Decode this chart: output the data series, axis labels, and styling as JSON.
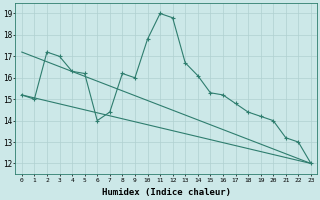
{
  "xlabel": "Humidex (Indice chaleur)",
  "bg_color": "#cce8e8",
  "grid_color": "#b0d0d0",
  "line_color": "#2e7d6e",
  "xlim": [
    -0.5,
    23.5
  ],
  "ylim": [
    11.5,
    19.5
  ],
  "xticks": [
    0,
    1,
    2,
    3,
    4,
    5,
    6,
    7,
    8,
    9,
    10,
    11,
    12,
    13,
    14,
    15,
    16,
    17,
    18,
    19,
    20,
    21,
    22,
    23
  ],
  "yticks": [
    12,
    13,
    14,
    15,
    16,
    17,
    18,
    19
  ],
  "line1_x": [
    0,
    1,
    2,
    3,
    4,
    5,
    6,
    7,
    8,
    9,
    10,
    11,
    12,
    13,
    14,
    15,
    16,
    17,
    18,
    19,
    20,
    21,
    22,
    23
  ],
  "line1_y": [
    15.2,
    15.0,
    17.2,
    17.0,
    16.3,
    16.2,
    14.0,
    14.4,
    16.2,
    16.0,
    17.8,
    19.0,
    18.8,
    16.7,
    16.1,
    15.3,
    15.2,
    14.8,
    14.4,
    14.2,
    14.0,
    13.2,
    13.0,
    12.0
  ],
  "trend1_x": [
    0,
    23
  ],
  "trend1_y": [
    17.2,
    12.0
  ],
  "trend2_x": [
    0,
    23
  ],
  "trend2_y": [
    15.2,
    12.0
  ]
}
